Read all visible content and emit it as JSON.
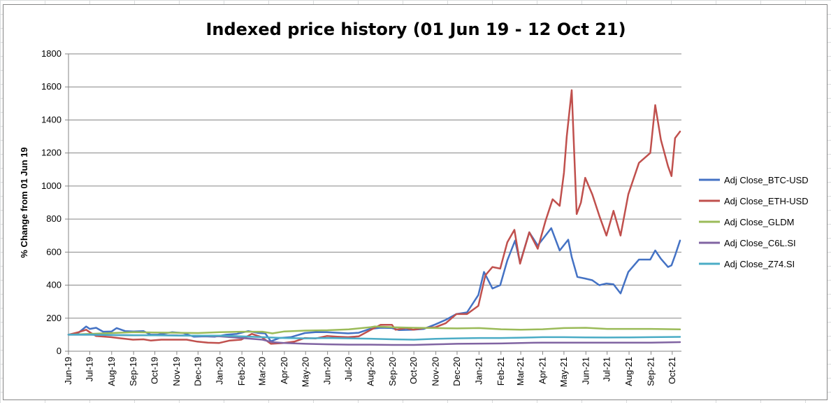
{
  "chart_data": {
    "type": "line",
    "title": "Indexed price history (01 Jun 19 - 12 Oct 21)",
    "xlabel": "",
    "ylabel": "% Change from 01 Jun 19",
    "ylim": [
      0,
      1800
    ],
    "yticks": [
      "0",
      "200",
      "400",
      "600",
      "800",
      "1000",
      "1200",
      "1400",
      "1600",
      "1800"
    ],
    "x_tick_labels": [
      "Jun-19",
      "Jul-19",
      "Aug-19",
      "Sep-19",
      "Oct-19",
      "Nov-19",
      "Dec-19",
      "Jan-20",
      "Feb-20",
      "Mar-20",
      "Apr-20",
      "May-20",
      "Jun-20",
      "Jul-20",
      "Aug-20",
      "Sep-20",
      "Oct-20",
      "Nov-20",
      "Dec-20",
      "Jan-21",
      "Feb-21",
      "Mar-21",
      "Apr-21",
      "May-21",
      "Jun-21",
      "Jul-21",
      "Aug-21",
      "Sep-21",
      "Oct-21"
    ],
    "grid": true,
    "legend_placement": "right",
    "series": [
      {
        "name": "Adj Close_BTC-USD",
        "color": "#4472C4",
        "points": [
          [
            "2019-06-01",
            100
          ],
          [
            "2019-06-15",
            112
          ],
          [
            "2019-06-26",
            150
          ],
          [
            "2019-07-01",
            135
          ],
          [
            "2019-07-10",
            142
          ],
          [
            "2019-07-20",
            118
          ],
          [
            "2019-08-01",
            120
          ],
          [
            "2019-08-08",
            140
          ],
          [
            "2019-08-20",
            122
          ],
          [
            "2019-09-01",
            120
          ],
          [
            "2019-09-15",
            122
          ],
          [
            "2019-09-25",
            100
          ],
          [
            "2019-10-05",
            100
          ],
          [
            "2019-10-25",
            115
          ],
          [
            "2019-11-10",
            110
          ],
          [
            "2019-11-25",
            88
          ],
          [
            "2019-12-10",
            90
          ],
          [
            "2019-12-25",
            88
          ],
          [
            "2020-01-10",
            100
          ],
          [
            "2020-01-25",
            105
          ],
          [
            "2020-02-10",
            122
          ],
          [
            "2020-02-25",
            110
          ],
          [
            "2020-03-05",
            108
          ],
          [
            "2020-03-13",
            60
          ],
          [
            "2020-03-25",
            80
          ],
          [
            "2020-04-10",
            85
          ],
          [
            "2020-04-30",
            110
          ],
          [
            "2020-05-15",
            115
          ],
          [
            "2020-05-31",
            115
          ],
          [
            "2020-06-15",
            112
          ],
          [
            "2020-06-30",
            108
          ],
          [
            "2020-07-15",
            112
          ],
          [
            "2020-07-31",
            135
          ],
          [
            "2020-08-15",
            142
          ],
          [
            "2020-08-31",
            140
          ],
          [
            "2020-09-10",
            128
          ],
          [
            "2020-09-30",
            130
          ],
          [
            "2020-10-15",
            135
          ],
          [
            "2020-10-31",
            162
          ],
          [
            "2020-11-15",
            190
          ],
          [
            "2020-11-30",
            225
          ],
          [
            "2020-12-15",
            235
          ],
          [
            "2020-12-31",
            340
          ],
          [
            "2021-01-08",
            480
          ],
          [
            "2021-01-20",
            380
          ],
          [
            "2021-01-31",
            400
          ],
          [
            "2021-02-10",
            550
          ],
          [
            "2021-02-21",
            670
          ],
          [
            "2021-02-28",
            535
          ],
          [
            "2021-03-13",
            720
          ],
          [
            "2021-03-25",
            640
          ],
          [
            "2021-04-13",
            745
          ],
          [
            "2021-04-25",
            610
          ],
          [
            "2021-05-07",
            675
          ],
          [
            "2021-05-12",
            570
          ],
          [
            "2021-05-20",
            450
          ],
          [
            "2021-05-31",
            440
          ],
          [
            "2021-06-10",
            430
          ],
          [
            "2021-06-20",
            400
          ],
          [
            "2021-06-30",
            410
          ],
          [
            "2021-07-10",
            405
          ],
          [
            "2021-07-20",
            350
          ],
          [
            "2021-07-31",
            480
          ],
          [
            "2021-08-15",
            555
          ],
          [
            "2021-08-31",
            555
          ],
          [
            "2021-09-07",
            610
          ],
          [
            "2021-09-15",
            560
          ],
          [
            "2021-09-25",
            510
          ],
          [
            "2021-09-30",
            520
          ],
          [
            "2021-10-05",
            580
          ],
          [
            "2021-10-12",
            670
          ]
        ]
      },
      {
        "name": "Adj Close_ETH-USD",
        "color": "#C0504D",
        "points": [
          [
            "2019-06-01",
            100
          ],
          [
            "2019-06-15",
            115
          ],
          [
            "2019-06-26",
            130
          ],
          [
            "2019-07-01",
            115
          ],
          [
            "2019-07-10",
            92
          ],
          [
            "2019-07-31",
            85
          ],
          [
            "2019-08-10",
            80
          ],
          [
            "2019-08-31",
            70
          ],
          [
            "2019-09-15",
            72
          ],
          [
            "2019-09-25",
            65
          ],
          [
            "2019-10-10",
            70
          ],
          [
            "2019-10-31",
            70
          ],
          [
            "2019-11-15",
            70
          ],
          [
            "2019-11-30",
            58
          ],
          [
            "2019-12-15",
            52
          ],
          [
            "2019-12-31",
            50
          ],
          [
            "2020-01-15",
            65
          ],
          [
            "2020-01-31",
            70
          ],
          [
            "2020-02-15",
            105
          ],
          [
            "2020-02-29",
            85
          ],
          [
            "2020-03-13",
            45
          ],
          [
            "2020-03-31",
            50
          ],
          [
            "2020-04-15",
            58
          ],
          [
            "2020-04-30",
            80
          ],
          [
            "2020-05-15",
            77
          ],
          [
            "2020-05-31",
            92
          ],
          [
            "2020-06-15",
            88
          ],
          [
            "2020-06-30",
            85
          ],
          [
            "2020-07-15",
            90
          ],
          [
            "2020-07-31",
            127
          ],
          [
            "2020-08-15",
            160
          ],
          [
            "2020-08-31",
            160
          ],
          [
            "2020-09-05",
            130
          ],
          [
            "2020-09-20",
            140
          ],
          [
            "2020-09-30",
            130
          ],
          [
            "2020-10-15",
            140
          ],
          [
            "2020-10-31",
            145
          ],
          [
            "2020-11-15",
            170
          ],
          [
            "2020-11-30",
            225
          ],
          [
            "2020-12-15",
            225
          ],
          [
            "2020-12-31",
            275
          ],
          [
            "2021-01-10",
            460
          ],
          [
            "2021-01-20",
            510
          ],
          [
            "2021-01-31",
            500
          ],
          [
            "2021-02-10",
            660
          ],
          [
            "2021-02-20",
            735
          ],
          [
            "2021-02-28",
            530
          ],
          [
            "2021-03-13",
            720
          ],
          [
            "2021-03-25",
            620
          ],
          [
            "2021-04-05",
            790
          ],
          [
            "2021-04-15",
            920
          ],
          [
            "2021-04-25",
            880
          ],
          [
            "2021-05-01",
            1080
          ],
          [
            "2021-05-05",
            1300
          ],
          [
            "2021-05-12",
            1580
          ],
          [
            "2021-05-19",
            830
          ],
          [
            "2021-05-25",
            900
          ],
          [
            "2021-05-31",
            1050
          ],
          [
            "2021-06-10",
            950
          ],
          [
            "2021-06-20",
            820
          ],
          [
            "2021-06-30",
            700
          ],
          [
            "2021-07-10",
            850
          ],
          [
            "2021-07-20",
            700
          ],
          [
            "2021-07-31",
            950
          ],
          [
            "2021-08-15",
            1140
          ],
          [
            "2021-08-31",
            1200
          ],
          [
            "2021-09-07",
            1490
          ],
          [
            "2021-09-15",
            1280
          ],
          [
            "2021-09-25",
            1120
          ],
          [
            "2021-09-30",
            1060
          ],
          [
            "2021-10-05",
            1290
          ],
          [
            "2021-10-12",
            1330
          ]
        ]
      },
      {
        "name": "Adj Close_GLDM",
        "color": "#9BBB59",
        "points": [
          [
            "2019-06-01",
            100
          ],
          [
            "2019-07-01",
            105
          ],
          [
            "2019-08-01",
            110
          ],
          [
            "2019-09-01",
            115
          ],
          [
            "2019-10-01",
            113
          ],
          [
            "2019-11-01",
            112
          ],
          [
            "2019-12-01",
            110
          ],
          [
            "2020-01-01",
            115
          ],
          [
            "2020-02-01",
            118
          ],
          [
            "2020-03-01",
            118
          ],
          [
            "2020-03-15",
            108
          ],
          [
            "2020-04-01",
            120
          ],
          [
            "2020-05-01",
            125
          ],
          [
            "2020-06-01",
            127
          ],
          [
            "2020-07-01",
            132
          ],
          [
            "2020-07-31",
            145
          ],
          [
            "2020-08-07",
            150
          ],
          [
            "2020-09-01",
            145
          ],
          [
            "2020-10-01",
            142
          ],
          [
            "2020-11-01",
            140
          ],
          [
            "2020-12-01",
            138
          ],
          [
            "2021-01-01",
            140
          ],
          [
            "2021-02-01",
            133
          ],
          [
            "2021-03-01",
            130
          ],
          [
            "2021-04-01",
            133
          ],
          [
            "2021-05-01",
            140
          ],
          [
            "2021-06-01",
            142
          ],
          [
            "2021-07-01",
            135
          ],
          [
            "2021-08-01",
            135
          ],
          [
            "2021-09-01",
            135
          ],
          [
            "2021-10-12",
            132
          ]
        ]
      },
      {
        "name": "Adj Close_C6L.SI",
        "color": "#8064A2",
        "points": [
          [
            "2019-06-01",
            100
          ],
          [
            "2019-07-01",
            100
          ],
          [
            "2019-08-01",
            98
          ],
          [
            "2019-09-01",
            96
          ],
          [
            "2019-10-01",
            97
          ],
          [
            "2019-11-01",
            96
          ],
          [
            "2019-12-01",
            93
          ],
          [
            "2020-01-01",
            90
          ],
          [
            "2020-02-01",
            80
          ],
          [
            "2020-03-01",
            70
          ],
          [
            "2020-03-15",
            55
          ],
          [
            "2020-04-01",
            50
          ],
          [
            "2020-05-01",
            45
          ],
          [
            "2020-06-01",
            42
          ],
          [
            "2020-07-01",
            40
          ],
          [
            "2020-08-01",
            40
          ],
          [
            "2020-09-01",
            38
          ],
          [
            "2020-10-01",
            38
          ],
          [
            "2020-11-01",
            42
          ],
          [
            "2020-12-01",
            45
          ],
          [
            "2021-01-01",
            46
          ],
          [
            "2021-02-01",
            47
          ],
          [
            "2021-03-01",
            50
          ],
          [
            "2021-04-01",
            52
          ],
          [
            "2021-05-01",
            52
          ],
          [
            "2021-06-01",
            52
          ],
          [
            "2021-07-01",
            52
          ],
          [
            "2021-08-01",
            52
          ],
          [
            "2021-09-01",
            52
          ],
          [
            "2021-10-12",
            55
          ]
        ]
      },
      {
        "name": "Adj Close_Z74.SI",
        "color": "#4BACC6",
        "points": [
          [
            "2019-06-01",
            100
          ],
          [
            "2019-07-01",
            100
          ],
          [
            "2019-08-01",
            98
          ],
          [
            "2019-09-01",
            97
          ],
          [
            "2019-10-01",
            96
          ],
          [
            "2019-11-01",
            95
          ],
          [
            "2019-12-01",
            94
          ],
          [
            "2020-01-01",
            94
          ],
          [
            "2020-02-01",
            90
          ],
          [
            "2020-03-01",
            85
          ],
          [
            "2020-04-01",
            80
          ],
          [
            "2020-05-01",
            78
          ],
          [
            "2020-06-01",
            80
          ],
          [
            "2020-07-01",
            78
          ],
          [
            "2020-08-01",
            76
          ],
          [
            "2020-09-01",
            72
          ],
          [
            "2020-10-01",
            70
          ],
          [
            "2020-11-01",
            75
          ],
          [
            "2020-12-01",
            78
          ],
          [
            "2021-01-01",
            80
          ],
          [
            "2021-02-01",
            80
          ],
          [
            "2021-03-01",
            82
          ],
          [
            "2021-04-01",
            85
          ],
          [
            "2021-05-01",
            85
          ],
          [
            "2021-06-01",
            84
          ],
          [
            "2021-07-01",
            83
          ],
          [
            "2021-08-01",
            84
          ],
          [
            "2021-09-01",
            85
          ],
          [
            "2021-10-12",
            87
          ]
        ]
      }
    ]
  }
}
